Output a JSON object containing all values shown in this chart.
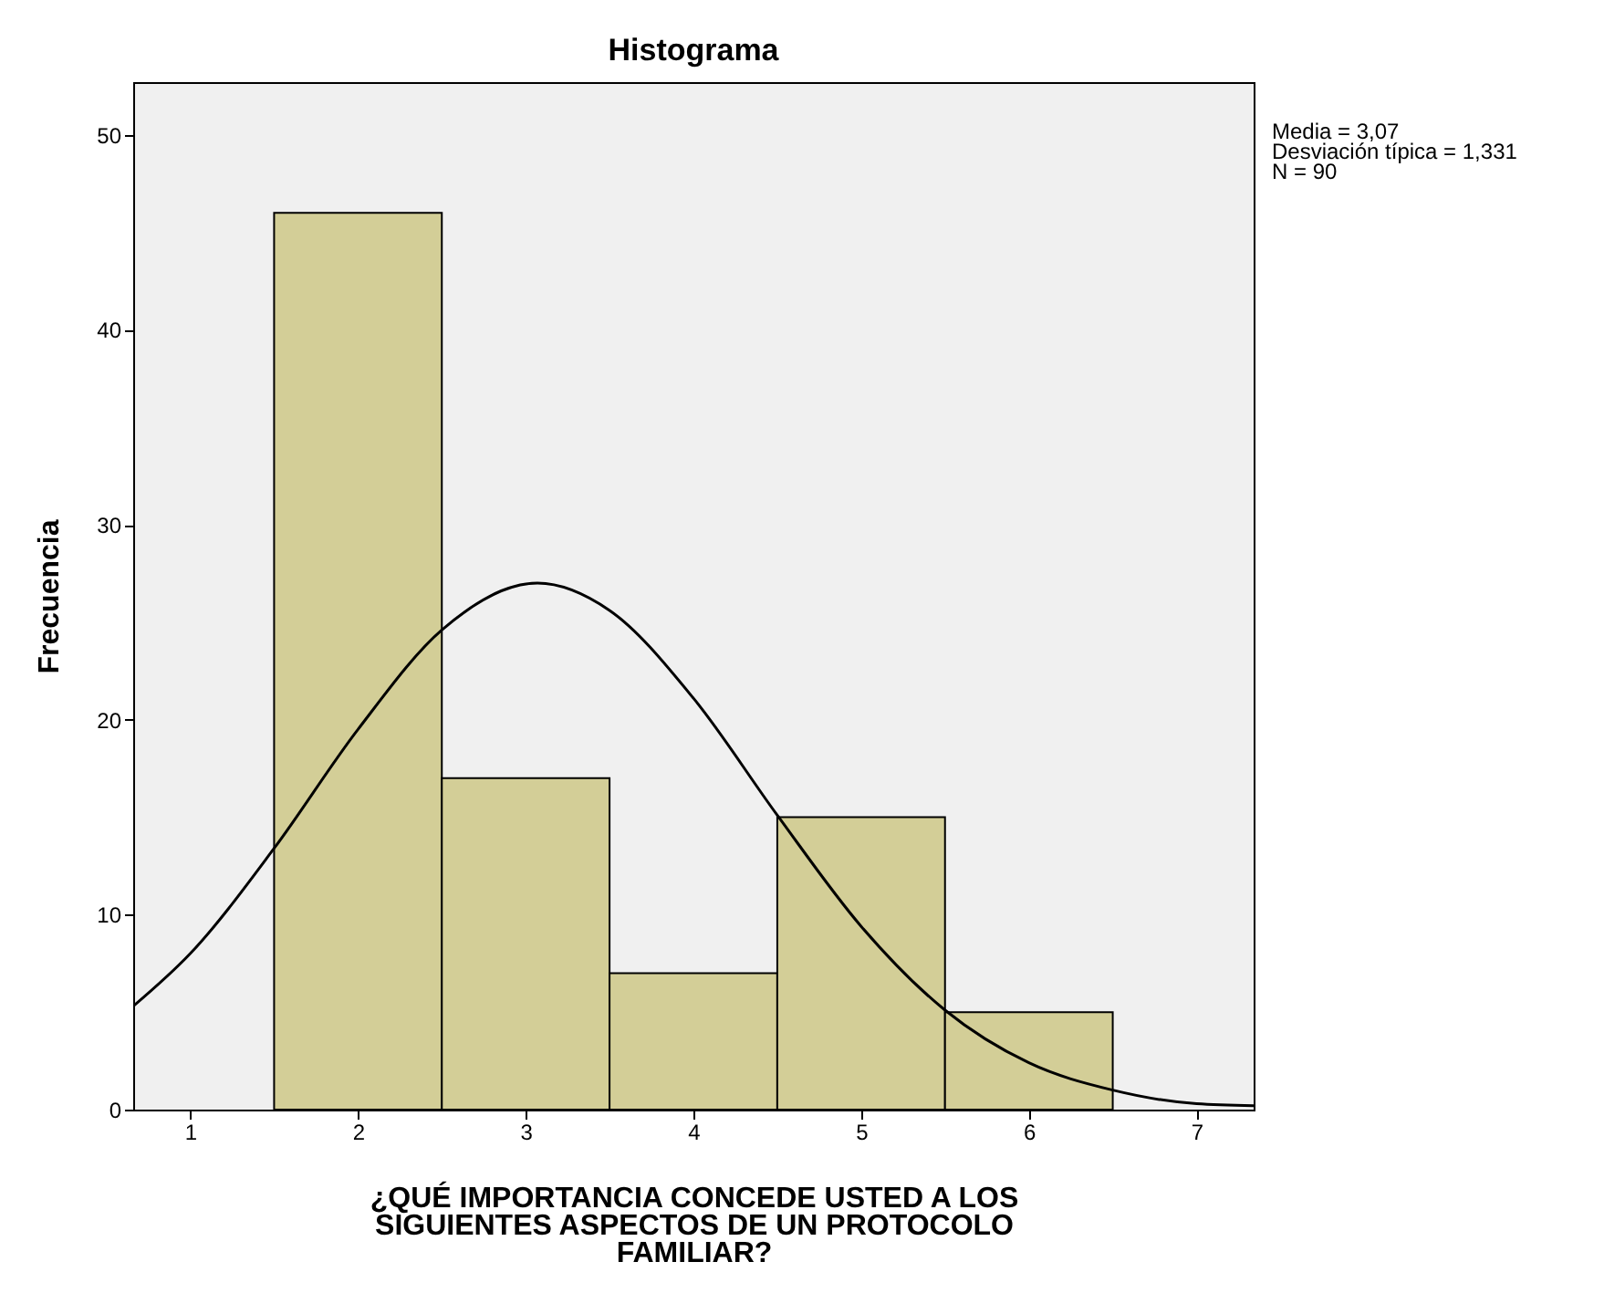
{
  "chart_data": {
    "type": "histogram",
    "title": "Histograma",
    "xlabel": "¿QUÉ IMPORTANCIA CONCEDE USTED A LOS SIGUIENTES ASPECTOS DE UN PROTOCOLO FAMILIAR?",
    "ylabel": "Frecuencia",
    "bins": [
      1.5,
      2.5,
      3.5,
      4.5,
      5.5,
      6.5
    ],
    "values": [
      46,
      17,
      7,
      15,
      5
    ],
    "color": "#d3ce97",
    "series": [
      {
        "type": "line",
        "color": "#000000",
        "x": [
          0.66,
          1,
          1.5,
          2,
          2.5,
          3.07,
          3.5,
          4,
          4.5,
          5,
          5.5,
          6,
          6.5,
          7,
          7.34
        ],
        "values": [
          5.3,
          8.0,
          13.4,
          19.5,
          24.6,
          27.0,
          25.6,
          21.1,
          15.1,
          9.4,
          5.1,
          2.4,
          1.0,
          0.3,
          0.2
        ]
      }
    ],
    "xlim": [
      0.66,
      7.34
    ],
    "xticks": [
      1,
      2,
      3,
      4,
      5,
      6,
      7
    ],
    "ylim": [
      0,
      52.7
    ],
    "yticks": [
      0,
      10,
      20,
      30,
      40,
      50
    ],
    "grid": false,
    "annotations": [
      "Media = 3,07",
      "Desviación típica = 1,331",
      "N = 90"
    ]
  }
}
